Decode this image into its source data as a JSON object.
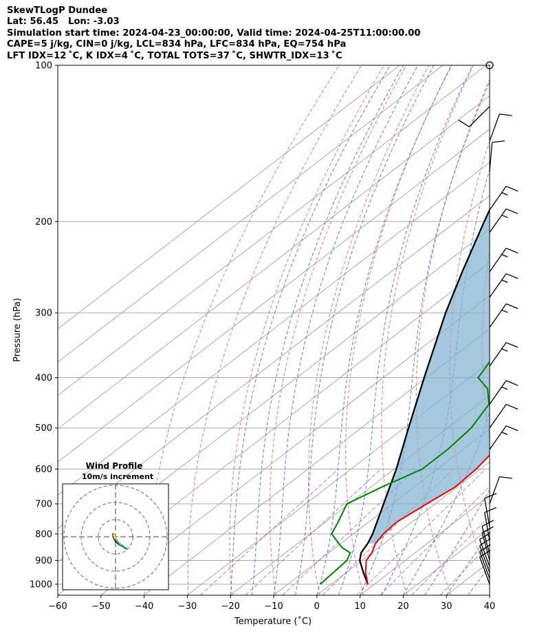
{
  "header": {
    "line1": "SkewTLogP Dundee",
    "line2": "Lat: 56.45   Lon: -3.03",
    "line3": "Simulation start time: 2024-04-23_00:00:00, Valid time: 2024-04-25T11:00:00.00",
    "line4": "CAPE=5 j/kg, CIN=0 j/kg, LCL=834 hPa, LFC=834 hPa, EQ=754 hPa",
    "line5": "LFT IDX=12 ˚C, K IDX=4 ˚C, TOTAL TOTS=37 ˚C, SHWTR_IDX=13 ˚C"
  },
  "colors": {
    "temperature": "#ee0000",
    "dewpoint": "#008000",
    "parcel": "#000000",
    "cape_fill": "#7fb0d2",
    "dry_adiabat": "#ff5a5a",
    "moist_adiabat": "#4a5bff",
    "mixing_ratio": "#9a49c9",
    "isotherm": "#a8a8a8"
  },
  "chart_data": {
    "type": "skewt",
    "xlabel": "Temperature (˚C)",
    "ylabel": "Pressure (hPa)",
    "xlim": [
      -60,
      40
    ],
    "ylim": [
      1050,
      100
    ],
    "x_ticks": [
      "−60",
      "−50",
      "−40",
      "−30",
      "−20",
      "−10",
      "0",
      "10",
      "20",
      "30",
      "40"
    ],
    "y_ticks": [
      1000,
      900,
      800,
      700,
      600,
      500,
      400,
      300,
      200,
      100
    ],
    "grid": true,
    "temperature": [
      [
        1000,
        8.5
      ],
      [
        950,
        4.5
      ],
      [
        900,
        1.0
      ],
      [
        870,
        0.0
      ],
      [
        834,
        -2.0
      ],
      [
        800,
        -3.0
      ],
      [
        760,
        -3.5
      ],
      [
        700,
        -2.0
      ],
      [
        650,
        -0.5
      ],
      [
        600,
        -1.0
      ],
      [
        550,
        -2.5
      ],
      [
        500,
        -5.0
      ],
      [
        450,
        -8.0
      ],
      [
        400,
        -12.0
      ],
      [
        350,
        -16.5
      ],
      [
        320,
        -18.5
      ],
      [
        300,
        -20.0
      ],
      [
        280,
        -22.0
      ],
      [
        260,
        -24.0
      ],
      [
        240,
        -26.5
      ],
      [
        220,
        -30.5
      ],
      [
        200,
        -34.5
      ],
      [
        185,
        -37.5
      ],
      [
        165,
        -40.5
      ],
      [
        145,
        -43.5
      ],
      [
        130,
        -45.5
      ],
      [
        120,
        -47.0
      ],
      [
        110,
        -49.0
      ],
      [
        100,
        -51.5
      ]
    ],
    "dewpoint": [
      [
        1000,
        -2.5
      ],
      [
        950,
        -3.0
      ],
      [
        900,
        -3.5
      ],
      [
        870,
        -5.0
      ],
      [
        850,
        -8.5
      ],
      [
        800,
        -15.0
      ],
      [
        760,
        -17.0
      ],
      [
        700,
        -20.5
      ],
      [
        650,
        -17.5
      ],
      [
        600,
        -13.5
      ],
      [
        550,
        -13.5
      ],
      [
        500,
        -14.5
      ],
      [
        450,
        -17.5
      ],
      [
        420,
        -22.5
      ],
      [
        400,
        -28.0
      ],
      [
        350,
        -32.0
      ],
      [
        300,
        -38.5
      ],
      [
        260,
        -44.0
      ],
      [
        240,
        -47.0
      ],
      [
        220,
        -53.0
      ],
      [
        200,
        -60.0
      ],
      [
        185,
        -63.0
      ],
      [
        165,
        -67.0
      ],
      [
        145,
        -72.5
      ],
      [
        125,
        -79.0
      ],
      [
        100,
        -87.5
      ]
    ],
    "parcel": [
      [
        1000,
        8.5
      ],
      [
        950,
        4.0
      ],
      [
        900,
        -0.5
      ],
      [
        870,
        -2.5
      ],
      [
        834,
        -3.8
      ],
      [
        800,
        -5.5
      ],
      [
        700,
        -12.0
      ],
      [
        600,
        -19.5
      ],
      [
        500,
        -29.0
      ],
      [
        400,
        -40.5
      ],
      [
        300,
        -55.0
      ],
      [
        250,
        -63.5
      ],
      [
        200,
        -73.5
      ],
      [
        150,
        -86.0
      ],
      [
        120,
        -95.5
      ],
      [
        100,
        -102.0
      ]
    ],
    "wind_barbs": [
      {
        "pressure": 1000,
        "speed_kt": 10,
        "dir_deg": 340
      },
      {
        "pressure": 975,
        "speed_kt": 10,
        "dir_deg": 340
      },
      {
        "pressure": 950,
        "speed_kt": 10,
        "dir_deg": 340
      },
      {
        "pressure": 925,
        "speed_kt": 10,
        "dir_deg": 340
      },
      {
        "pressure": 900,
        "speed_kt": 10,
        "dir_deg": 345
      },
      {
        "pressure": 875,
        "speed_kt": 10,
        "dir_deg": 345
      },
      {
        "pressure": 825,
        "speed_kt": 10,
        "dir_deg": 350
      },
      {
        "pressure": 775,
        "speed_kt": 10,
        "dir_deg": 350
      },
      {
        "pressure": 700,
        "speed_kt": 10,
        "dir_deg": 20
      },
      {
        "pressure": 550,
        "speed_kt": 15,
        "dir_deg": 35
      },
      {
        "pressure": 500,
        "speed_kt": 10,
        "dir_deg": 35
      },
      {
        "pressure": 450,
        "speed_kt": 15,
        "dir_deg": 35
      },
      {
        "pressure": 380,
        "speed_kt": 15,
        "dir_deg": 35
      },
      {
        "pressure": 320,
        "speed_kt": 15,
        "dir_deg": 35
      },
      {
        "pressure": 280,
        "speed_kt": 15,
        "dir_deg": 35
      },
      {
        "pressure": 250,
        "speed_kt": 15,
        "dir_deg": 35
      },
      {
        "pressure": 210,
        "speed_kt": 15,
        "dir_deg": 35
      },
      {
        "pressure": 190,
        "speed_kt": 15,
        "dir_deg": 35
      },
      {
        "pressure": 160,
        "speed_kt": 10,
        "dir_deg": 5
      },
      {
        "pressure": 140,
        "speed_kt": 10,
        "dir_deg": 20
      },
      {
        "pressure": 120,
        "speed_kt": 10,
        "dir_deg": 225
      },
      {
        "pressure": 100,
        "speed_kt": 0,
        "dir_deg": 0
      }
    ],
    "hodograph": {
      "title": "Wind Profile",
      "subtitle": "10m/s increment",
      "rings_ms": [
        10,
        20,
        30
      ],
      "points": [
        [
          -1.5,
          1.5
        ],
        [
          -1.0,
          -0.5
        ],
        [
          0.0,
          -2.5
        ],
        [
          2.0,
          -4.5
        ],
        [
          4.0,
          -5.5
        ],
        [
          5.5,
          -6.5
        ],
        [
          6.5,
          -7.0
        ],
        [
          5.0,
          -6.0
        ],
        [
          3.0,
          -4.5
        ],
        [
          1.0,
          -2.5
        ],
        [
          -0.5,
          -0.5
        ],
        [
          -1.0,
          1.0
        ],
        [
          -0.5,
          2.0
        ]
      ]
    }
  }
}
